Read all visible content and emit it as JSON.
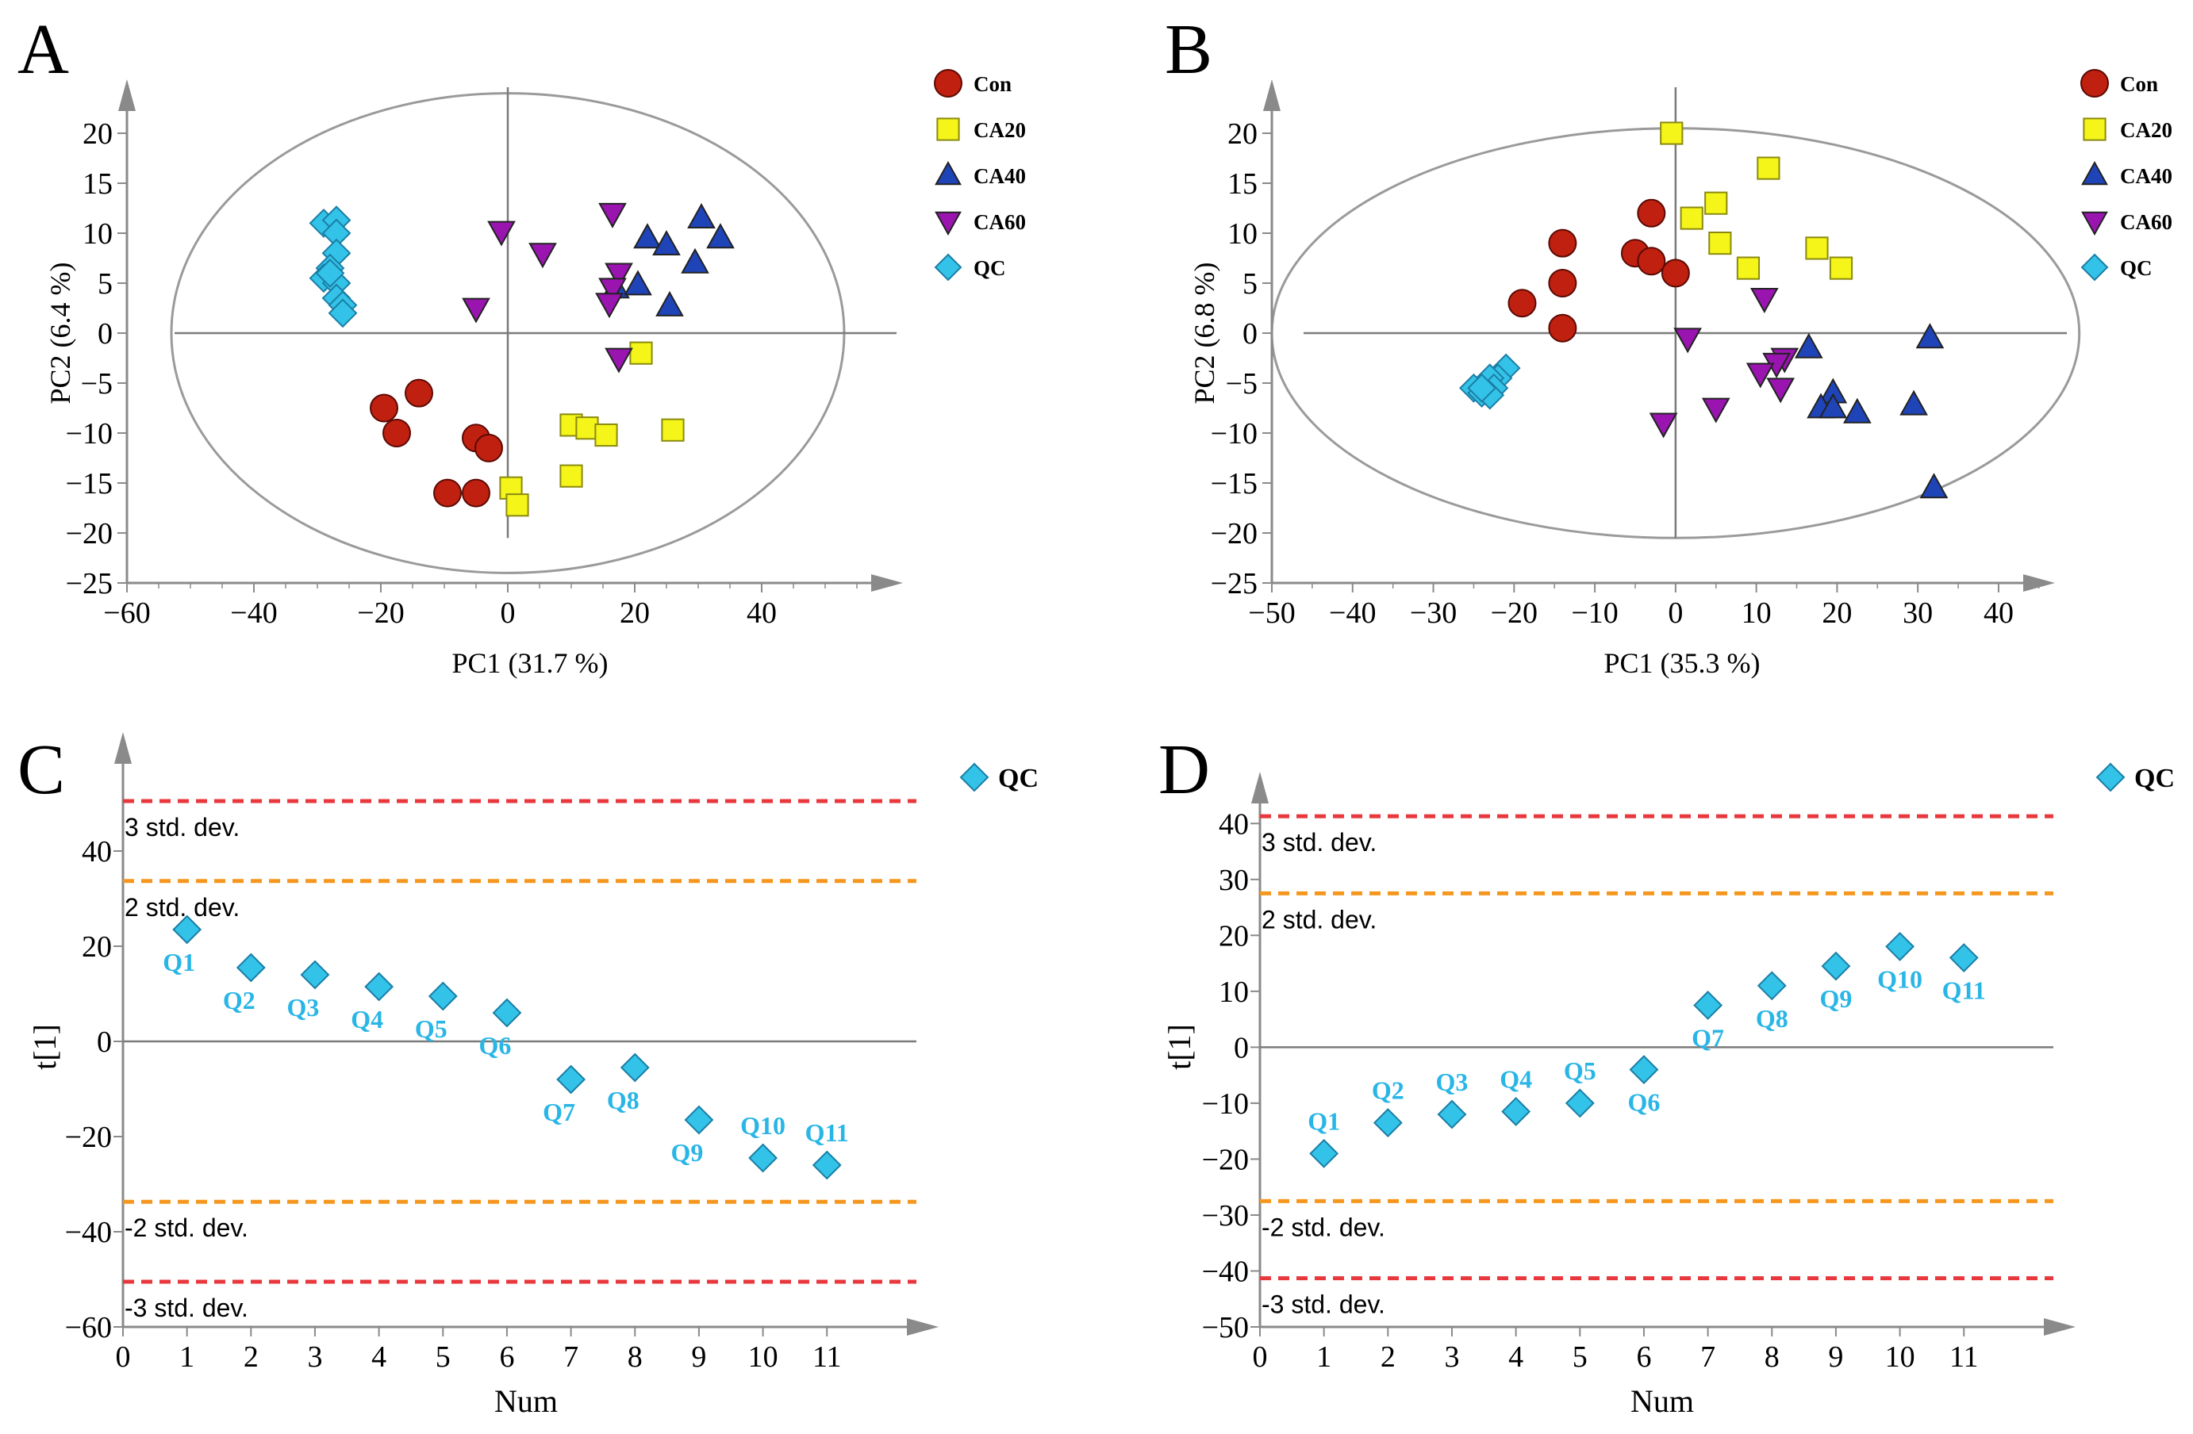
{
  "colors": {
    "Con": "#c0200f",
    "CA20": "#f5f51a",
    "CA40": "#1f44b8",
    "CA60": "#9a14b0",
    "QC": "#34c3e8",
    "label": "#29b6e6",
    "std3": "#e8383d",
    "std2": "#f5971f",
    "axis": "#8a8a8a"
  },
  "groups": [
    {
      "key": "Con",
      "label": "Con",
      "shape": "circle"
    },
    {
      "key": "CA20",
      "label": "CA20",
      "shape": "square"
    },
    {
      "key": "CA40",
      "label": "CA40",
      "shape": "triangle-up"
    },
    {
      "key": "CA60",
      "label": "CA60",
      "shape": "triangle-down"
    },
    {
      "key": "QC",
      "label": "QC",
      "shape": "diamond"
    }
  ],
  "chart_data": [
    {
      "panel": "A",
      "type": "scatter",
      "xlabel": "PC1 (31.7 %)",
      "ylabel": "PC2 (6.4 %)",
      "xlim": [
        -60,
        55
      ],
      "ylim": [
        -25,
        25
      ],
      "xticks": [
        -60,
        -40,
        -20,
        0,
        20,
        40
      ],
      "yticks": [
        -25,
        -20,
        -15,
        -10,
        -5,
        0,
        5,
        10,
        15,
        20
      ],
      "ellipse": {
        "center": [
          0,
          0
        ],
        "rx": 53,
        "ry": 24
      },
      "series": [
        {
          "name": "Con",
          "points": [
            [
              -19.5,
              -7.5
            ],
            [
              -14,
              -6
            ],
            [
              -17.5,
              -10
            ],
            [
              -5,
              -10.5
            ],
            [
              -3,
              -11.5
            ],
            [
              -9.5,
              -16
            ],
            [
              -5,
              -16
            ]
          ]
        },
        {
          "name": "CA20",
          "points": [
            [
              21,
              -2
            ],
            [
              10,
              -9.2
            ],
            [
              12.5,
              -9.5
            ],
            [
              15.5,
              -10.2
            ],
            [
              26,
              -9.7
            ],
            [
              10,
              -14.3
            ],
            [
              0.5,
              -15.5
            ],
            [
              1.5,
              -17.2
            ]
          ]
        },
        {
          "name": "CA40",
          "points": [
            [
              22,
              9.5
            ],
            [
              25,
              8.8
            ],
            [
              30.5,
              11.5
            ],
            [
              33.5,
              9.5
            ],
            [
              29.5,
              7
            ],
            [
              17,
              4.5
            ],
            [
              20.5,
              4.8
            ],
            [
              25.5,
              2.7
            ]
          ]
        },
        {
          "name": "CA60",
          "points": [
            [
              -1,
              10.2
            ],
            [
              5.5,
              8
            ],
            [
              16.5,
              12
            ],
            [
              17.5,
              6
            ],
            [
              16.5,
              4.5
            ],
            [
              16,
              3
            ],
            [
              17.5,
              -2.5
            ],
            [
              -5,
              2.5
            ]
          ]
        },
        {
          "name": "QC",
          "points": [
            [
              -29,
              11
            ],
            [
              -27,
              11.3
            ],
            [
              -27,
              10
            ],
            [
              -27,
              8
            ],
            [
              -28,
              6.5
            ],
            [
              -29,
              5.5
            ],
            [
              -27,
              5
            ],
            [
              -27,
              3.5
            ],
            [
              -26,
              2.8
            ],
            [
              -26,
              2
            ],
            [
              -28,
              6
            ]
          ]
        }
      ]
    },
    {
      "panel": "B",
      "type": "scatter",
      "xlabel": "PC1 (35.3 %)",
      "ylabel": "PC2 (6.8 %)",
      "xlim": [
        -50,
        46
      ],
      "ylim": [
        -25,
        25
      ],
      "xticks": [
        -50,
        -40,
        -30,
        -20,
        -10,
        0,
        10,
        20,
        30,
        40
      ],
      "yticks": [
        -25,
        -20,
        -15,
        -10,
        -5,
        0,
        5,
        10,
        15,
        20
      ],
      "ellipse": {
        "center": [
          0,
          0
        ],
        "rx": 50,
        "ry": 20.5
      },
      "series": [
        {
          "name": "Con",
          "points": [
            [
              -14,
              9
            ],
            [
              -3,
              12
            ],
            [
              -5,
              8
            ],
            [
              -3,
              7.2
            ],
            [
              0,
              6
            ],
            [
              -14,
              5
            ],
            [
              -19,
              3
            ],
            [
              -14,
              0.5
            ]
          ]
        },
        {
          "name": "CA20",
          "points": [
            [
              -0.5,
              20
            ],
            [
              11.5,
              16.5
            ],
            [
              5,
              13
            ],
            [
              2,
              11.5
            ],
            [
              5.5,
              9
            ],
            [
              9,
              6.5
            ],
            [
              17.5,
              8.5
            ],
            [
              20.5,
              6.5
            ]
          ]
        },
        {
          "name": "CA40",
          "points": [
            [
              16.5,
              -1.5
            ],
            [
              31.5,
              -0.5
            ],
            [
              19.5,
              -6
            ],
            [
              18,
              -7.5
            ],
            [
              19.5,
              -7.5
            ],
            [
              22.5,
              -8
            ],
            [
              29.5,
              -7.2
            ],
            [
              32,
              -15.5
            ]
          ]
        },
        {
          "name": "CA60",
          "points": [
            [
              11,
              3.5
            ],
            [
              1.5,
              -0.5
            ],
            [
              13.5,
              -2.5
            ],
            [
              12.5,
              -3
            ],
            [
              10.5,
              -4
            ],
            [
              13,
              -5.5
            ],
            [
              5,
              -7.5
            ],
            [
              -1.5,
              -9
            ]
          ]
        },
        {
          "name": "QC",
          "points": [
            [
              -21,
              -3.5
            ],
            [
              -22,
              -4.5
            ],
            [
              -23,
              -4.5
            ],
            [
              -25,
              -5.5
            ],
            [
              -24,
              -6
            ],
            [
              -22.5,
              -5.5
            ],
            [
              -23,
              -6.2
            ],
            [
              -24,
              -5.5
            ]
          ]
        }
      ]
    },
    {
      "panel": "C",
      "type": "scatter",
      "xlabel": "Num",
      "ylabel": "t[1]",
      "xlim": [
        0,
        12
      ],
      "ylim": [
        -60,
        60
      ],
      "xticks": [
        0,
        1,
        2,
        3,
        4,
        5,
        6,
        7,
        8,
        9,
        10,
        11
      ],
      "yticks": [
        -60,
        -40,
        -20,
        0,
        20,
        40
      ],
      "legend": "QC",
      "std_lines": [
        {
          "value": 50.5,
          "label": "3 std. dev.",
          "level": "std3"
        },
        {
          "value": 33.7,
          "label": "2 std. dev.",
          "level": "std2"
        },
        {
          "value": -33.7,
          "label": "-2 std. dev.",
          "level": "std2"
        },
        {
          "value": -50.5,
          "label": "-3 std. dev.",
          "level": "std3"
        }
      ],
      "points": [
        {
          "x": 1,
          "y": 23.5,
          "label": "Q1",
          "pos": "below"
        },
        {
          "x": 2,
          "y": 15.5,
          "label": "Q2",
          "pos": "below"
        },
        {
          "x": 3,
          "y": 14,
          "label": "Q3",
          "pos": "below"
        },
        {
          "x": 4,
          "y": 11.5,
          "label": "Q4",
          "pos": "below"
        },
        {
          "x": 5,
          "y": 9.5,
          "label": "Q5",
          "pos": "below"
        },
        {
          "x": 6,
          "y": 6,
          "label": "Q6",
          "pos": "below"
        },
        {
          "x": 7,
          "y": -8,
          "label": "Q7",
          "pos": "below"
        },
        {
          "x": 8,
          "y": -5.5,
          "label": "Q8",
          "pos": "below"
        },
        {
          "x": 9,
          "y": -16.5,
          "label": "Q9",
          "pos": "below"
        },
        {
          "x": 10,
          "y": -24.5,
          "label": "Q10",
          "pos": "above"
        },
        {
          "x": 11,
          "y": -26,
          "label": "Q11",
          "pos": "above"
        }
      ]
    },
    {
      "panel": "D",
      "type": "scatter",
      "xlabel": "Num",
      "ylabel": "t[1]",
      "xlim": [
        0,
        12
      ],
      "ylim": [
        -50,
        45
      ],
      "xticks": [
        0,
        1,
        2,
        3,
        4,
        5,
        6,
        7,
        8,
        9,
        10,
        11
      ],
      "yticks": [
        -50,
        -40,
        -30,
        -20,
        -10,
        0,
        10,
        20,
        30,
        40
      ],
      "legend": "QC",
      "std_lines": [
        {
          "value": 41.3,
          "label": "3 std. dev.",
          "level": "std3"
        },
        {
          "value": 27.5,
          "label": "2 std. dev.",
          "level": "std2"
        },
        {
          "value": -27.5,
          "label": "-2 std. dev.",
          "level": "std2"
        },
        {
          "value": -41.3,
          "label": "-3 std. dev.",
          "level": "std3"
        }
      ],
      "points": [
        {
          "x": 1,
          "y": -19,
          "label": "Q1",
          "pos": "above"
        },
        {
          "x": 2,
          "y": -13.5,
          "label": "Q2",
          "pos": "above"
        },
        {
          "x": 3,
          "y": -12,
          "label": "Q3",
          "pos": "above"
        },
        {
          "x": 4,
          "y": -11.5,
          "label": "Q4",
          "pos": "above"
        },
        {
          "x": 5,
          "y": -10,
          "label": "Q5",
          "pos": "above"
        },
        {
          "x": 6,
          "y": -4,
          "label": "Q6",
          "pos": "below"
        },
        {
          "x": 7,
          "y": 7.5,
          "label": "Q7",
          "pos": "below"
        },
        {
          "x": 8,
          "y": 11,
          "label": "Q8",
          "pos": "below"
        },
        {
          "x": 9,
          "y": 14.5,
          "label": "Q9",
          "pos": "below"
        },
        {
          "x": 10,
          "y": 18,
          "label": "Q10",
          "pos": "below"
        },
        {
          "x": 11,
          "y": 16,
          "label": "Q11",
          "pos": "below"
        }
      ]
    }
  ]
}
